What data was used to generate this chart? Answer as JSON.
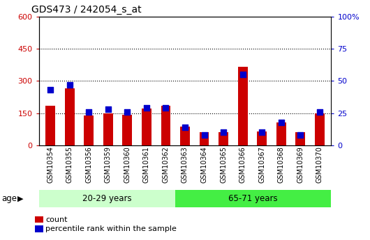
{
  "title": "GDS473 / 242054_s_at",
  "samples": [
    "GSM10354",
    "GSM10355",
    "GSM10356",
    "GSM10359",
    "GSM10360",
    "GSM10361",
    "GSM10362",
    "GSM10363",
    "GSM10364",
    "GSM10365",
    "GSM10366",
    "GSM10367",
    "GSM10368",
    "GSM10369",
    "GSM10370"
  ],
  "counts": [
    185,
    265,
    140,
    148,
    143,
    172,
    185,
    88,
    60,
    62,
    365,
    65,
    105,
    60,
    148
  ],
  "percentiles": [
    43,
    47,
    26,
    28,
    26,
    29,
    29,
    14,
    8,
    10,
    55,
    10,
    18,
    8,
    26
  ],
  "group1_label": "20-29 years",
  "group2_label": "65-71 years",
  "group1_count": 7,
  "group2_count": 8,
  "ylim_left": [
    0,
    600
  ],
  "ylim_right": [
    0,
    100
  ],
  "yticks_left": [
    0,
    150,
    300,
    450,
    600
  ],
  "yticks_right": [
    0,
    25,
    50,
    75,
    100
  ],
  "bar_color": "#cc0000",
  "dot_color": "#0000cc",
  "group1_bg": "#ccffcc",
  "group2_bg": "#44ee44",
  "tick_color_left": "#cc0000",
  "tick_color_right": "#0000cc",
  "legend_count_label": "count",
  "legend_pct_label": "percentile rank within the sample",
  "age_label": "age",
  "plot_bg": "#ffffff",
  "bar_width": 0.5,
  "dot_size": 28
}
